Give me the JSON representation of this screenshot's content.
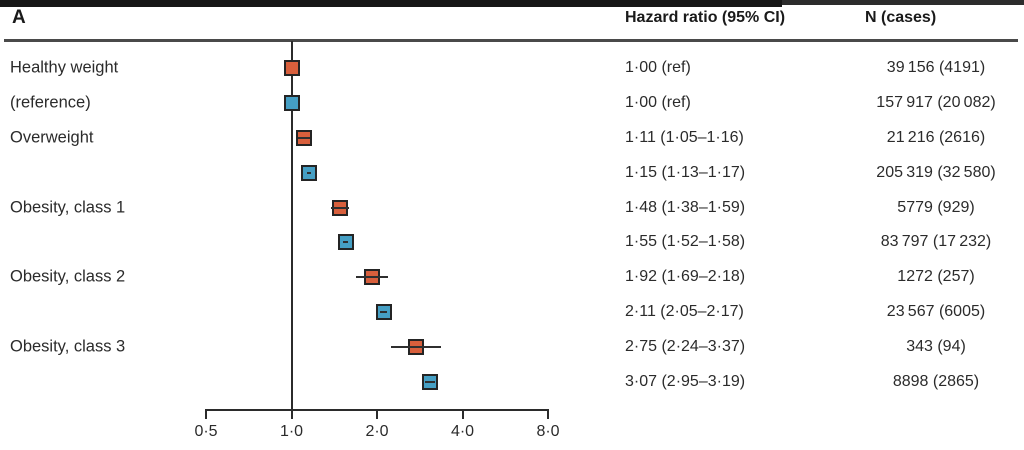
{
  "panel_label": "A",
  "table": {
    "col_hazard": "Hazard ratio (95% CI)",
    "col_n": "N (cases)"
  },
  "colors": {
    "series_red": "#d85f3c",
    "series_blue": "#459fc4",
    "ci_line": "#2f2f2f",
    "axis": "#2b2b2b"
  },
  "chart_data": {
    "type": "forest",
    "x_scale": "log2",
    "x_ticks": [
      {
        "value": 0.5,
        "label": "0·5"
      },
      {
        "value": 1.0,
        "label": "1·0"
      },
      {
        "value": 2.0,
        "label": "2·0"
      },
      {
        "value": 4.0,
        "label": "4·0"
      },
      {
        "value": 8.0,
        "label": "8·0"
      }
    ],
    "reference_line": 1.0,
    "series": [
      {
        "name": "series-red",
        "color": "#d85f3c"
      },
      {
        "name": "series-blue",
        "color": "#459fc4"
      }
    ],
    "rows": [
      {
        "label": "Healthy weight",
        "series": 0,
        "hr": 1.0,
        "ci_low": null,
        "ci_high": null,
        "hr_text": "1·00 (ref)",
        "n_text": "39 156 (4191)"
      },
      {
        "label": "(reference)",
        "series": 1,
        "hr": 1.0,
        "ci_low": null,
        "ci_high": null,
        "hr_text": "1·00 (ref)",
        "n_text": "157 917 (20 082)"
      },
      {
        "label": "Overweight",
        "series": 0,
        "hr": 1.11,
        "ci_low": 1.05,
        "ci_high": 1.16,
        "hr_text": "1·11 (1·05–1·16)",
        "n_text": "21 216 (2616)"
      },
      {
        "label": "",
        "series": 1,
        "hr": 1.15,
        "ci_low": 1.13,
        "ci_high": 1.17,
        "hr_text": "1·15 (1·13–1·17)",
        "n_text": "205 319 (32 580)"
      },
      {
        "label": "Obesity, class 1",
        "series": 0,
        "hr": 1.48,
        "ci_low": 1.38,
        "ci_high": 1.59,
        "hr_text": "1·48 (1·38–1·59)",
        "n_text": "5779 (929)"
      },
      {
        "label": "",
        "series": 1,
        "hr": 1.55,
        "ci_low": 1.52,
        "ci_high": 1.58,
        "hr_text": "1·55 (1·52–1·58)",
        "n_text": "83 797 (17 232)"
      },
      {
        "label": "Obesity, class 2",
        "series": 0,
        "hr": 1.92,
        "ci_low": 1.69,
        "ci_high": 2.18,
        "hr_text": "1·92 (1·69–2·18)",
        "n_text": "1272 (257)"
      },
      {
        "label": "",
        "series": 1,
        "hr": 2.11,
        "ci_low": 2.05,
        "ci_high": 2.17,
        "hr_text": "2·11 (2·05–2·17)",
        "n_text": "23 567 (6005)"
      },
      {
        "label": "Obesity, class 3",
        "series": 0,
        "hr": 2.75,
        "ci_low": 2.24,
        "ci_high": 3.37,
        "hr_text": "2·75 (2·24–3·37)",
        "n_text": "343 (94)"
      },
      {
        "label": "",
        "series": 1,
        "hr": 3.07,
        "ci_low": 2.95,
        "ci_high": 3.19,
        "hr_text": "3·07 (2·95–3·19)",
        "n_text": "8898 (2865)"
      }
    ]
  }
}
